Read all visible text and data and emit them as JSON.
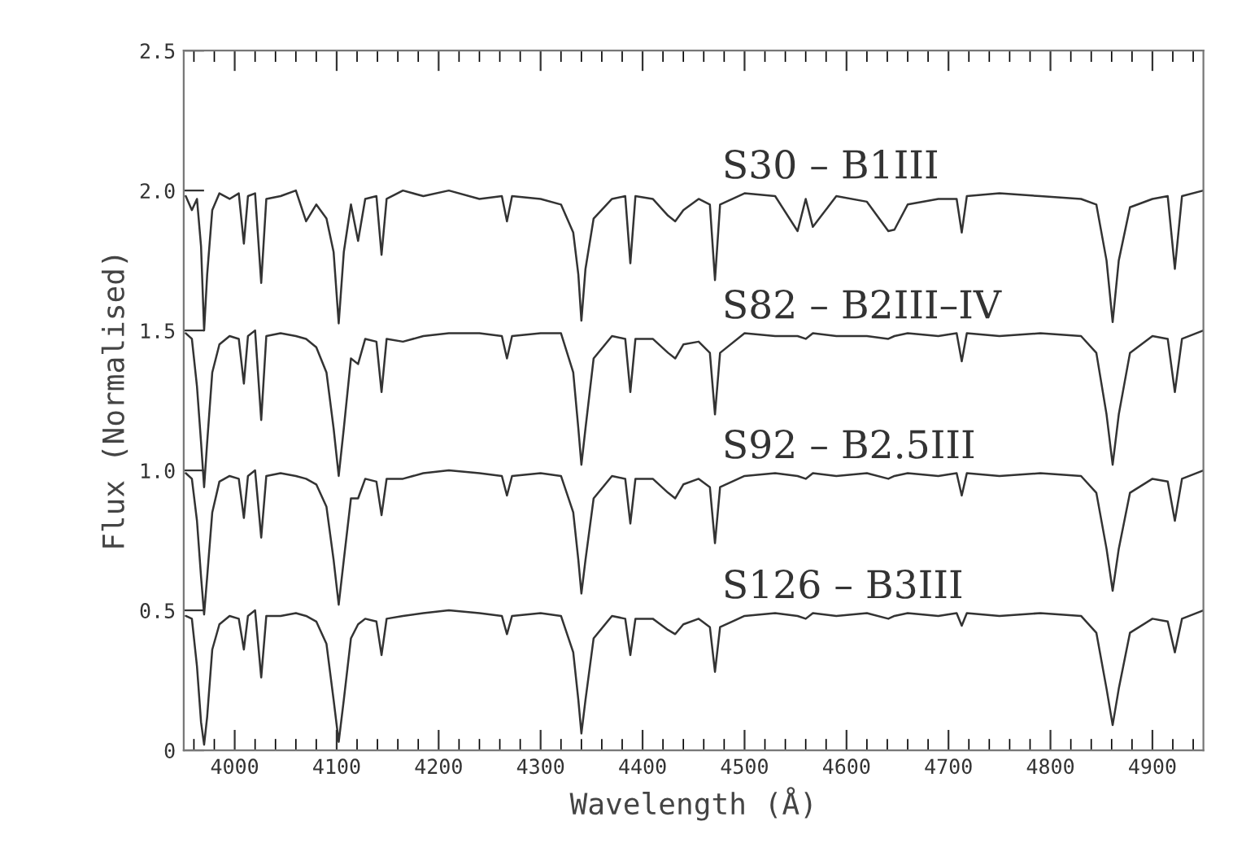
{
  "chart_data": {
    "type": "line",
    "xlabel": "Wavelength (Å)",
    "ylabel": "Flux (Normalised)",
    "xlim": [
      3950,
      4950
    ],
    "ylim": [
      0,
      2.5
    ],
    "xticks": [
      {
        "value": 3960,
        "label": null
      },
      {
        "value": 3980,
        "label": null
      },
      4000,
      {
        "value": 4020,
        "label": null
      },
      {
        "value": 4040,
        "label": null
      },
      {
        "value": 4060,
        "label": null
      },
      {
        "value": 4080,
        "label": null
      },
      4100,
      {
        "value": 4120,
        "label": null
      },
      {
        "value": 4140,
        "label": null
      },
      {
        "value": 4160,
        "label": null
      },
      {
        "value": 4180,
        "label": null
      },
      4200,
      {
        "value": 4220,
        "label": null
      },
      {
        "value": 4240,
        "label": null
      },
      {
        "value": 4260,
        "label": null
      },
      {
        "value": 4280,
        "label": null
      },
      4300,
      {
        "value": 4320,
        "label": null
      },
      {
        "value": 4340,
        "label": null
      },
      {
        "value": 4360,
        "label": null
      },
      {
        "value": 4380,
        "label": null
      },
      4400,
      {
        "value": 4420,
        "label": null
      },
      {
        "value": 4440,
        "label": null
      },
      {
        "value": 4460,
        "label": null
      },
      {
        "value": 4480,
        "label": null
      },
      4500,
      {
        "value": 4520,
        "label": null
      },
      {
        "value": 4540,
        "label": null
      },
      {
        "value": 4560,
        "label": null
      },
      {
        "value": 4580,
        "label": null
      },
      4600,
      {
        "value": 4620,
        "label": null
      },
      {
        "value": 4640,
        "label": null
      },
      {
        "value": 4660,
        "label": null
      },
      {
        "value": 4680,
        "label": null
      },
      4700,
      {
        "value": 4720,
        "label": null
      },
      {
        "value": 4740,
        "label": null
      },
      {
        "value": 4760,
        "label": null
      },
      {
        "value": 4780,
        "label": null
      },
      4800,
      {
        "value": 4820,
        "label": null
      },
      {
        "value": 4840,
        "label": null
      },
      {
        "value": 4860,
        "label": null
      },
      {
        "value": 4880,
        "label": null
      },
      4900,
      {
        "value": 4920,
        "label": null
      },
      {
        "value": 4940,
        "label": null
      }
    ],
    "yticks": [
      0,
      0.5,
      {
        "value": 1,
        "label": "1.0"
      },
      1.5,
      {
        "value": 2,
        "label": "2.0"
      },
      2.5
    ],
    "grid": false,
    "legend": false,
    "marker": "none",
    "line_style": "solid",
    "x": [
      3952,
      3958,
      3963,
      3967,
      3970,
      3973,
      3978,
      3985,
      3995,
      4004,
      4009,
      4013,
      4020,
      4026,
      4031,
      4045,
      4060,
      4070,
      4080,
      4090,
      4097,
      4102,
      4107,
      4114,
      4121,
      4128,
      4139,
      4144,
      4149,
      4165,
      4185,
      4210,
      4240,
      4262,
      4267,
      4272,
      4300,
      4320,
      4332,
      4337,
      4340,
      4344,
      4352,
      4370,
      4383,
      4388,
      4393,
      4410,
      4425,
      4432,
      4440,
      4455,
      4466,
      4471,
      4476,
      4500,
      4530,
      4552,
      4560,
      4567,
      4590,
      4620,
      4641,
      4647,
      4660,
      4690,
      4708,
      4713,
      4718,
      4750,
      4790,
      4830,
      4845,
      4855,
      4861,
      4867,
      4878,
      4900,
      4915,
      4922,
      4929,
      4950
    ],
    "series": [
      {
        "name": "S30 – B1III",
        "color": "#333333",
        "values": [
          1.98,
          1.93,
          1.97,
          1.8,
          1.5,
          1.7,
          1.93,
          1.99,
          1.97,
          1.99,
          1.81,
          1.98,
          1.99,
          1.67,
          1.97,
          1.98,
          2.0,
          1.89,
          1.95,
          1.9,
          1.78,
          1.525,
          1.78,
          1.95,
          1.82,
          1.97,
          1.98,
          1.77,
          1.97,
          2.0,
          1.98,
          2.0,
          1.97,
          1.98,
          1.89,
          1.98,
          1.97,
          1.95,
          1.85,
          1.7,
          1.535,
          1.72,
          1.9,
          1.97,
          1.98,
          1.74,
          1.98,
          1.97,
          1.91,
          1.89,
          1.93,
          1.97,
          1.95,
          1.68,
          1.95,
          1.99,
          1.98,
          1.855,
          1.97,
          1.87,
          1.98,
          1.96,
          1.855,
          1.86,
          1.95,
          1.97,
          1.97,
          1.85,
          1.98,
          1.99,
          1.98,
          1.97,
          1.95,
          1.75,
          1.53,
          1.75,
          1.94,
          1.97,
          1.98,
          1.72,
          1.98,
          2.0
        ]
      },
      {
        "name": "S82 – B2III–IV",
        "color": "#333333",
        "values": [
          1.49,
          1.47,
          1.3,
          1.1,
          0.94,
          1.1,
          1.35,
          1.45,
          1.48,
          1.47,
          1.31,
          1.48,
          1.5,
          1.18,
          1.48,
          1.49,
          1.48,
          1.47,
          1.44,
          1.35,
          1.15,
          0.98,
          1.15,
          1.4,
          1.38,
          1.47,
          1.46,
          1.28,
          1.47,
          1.46,
          1.48,
          1.49,
          1.49,
          1.48,
          1.4,
          1.48,
          1.49,
          1.49,
          1.35,
          1.15,
          1.02,
          1.15,
          1.4,
          1.48,
          1.47,
          1.28,
          1.47,
          1.47,
          1.42,
          1.4,
          1.45,
          1.46,
          1.42,
          1.2,
          1.42,
          1.49,
          1.48,
          1.48,
          1.47,
          1.49,
          1.48,
          1.48,
          1.47,
          1.48,
          1.49,
          1.48,
          1.49,
          1.39,
          1.49,
          1.48,
          1.49,
          1.48,
          1.42,
          1.2,
          1.02,
          1.2,
          1.42,
          1.48,
          1.47,
          1.28,
          1.47,
          1.5
        ]
      },
      {
        "name": "S92 – B2.5III",
        "color": "#333333",
        "values": [
          0.99,
          0.97,
          0.82,
          0.62,
          0.485,
          0.62,
          0.85,
          0.96,
          0.98,
          0.97,
          0.83,
          0.98,
          1.0,
          0.76,
          0.98,
          0.99,
          0.98,
          0.97,
          0.95,
          0.87,
          0.68,
          0.52,
          0.68,
          0.9,
          0.9,
          0.97,
          0.96,
          0.84,
          0.97,
          0.97,
          0.99,
          1.0,
          0.99,
          0.98,
          0.91,
          0.98,
          0.99,
          0.98,
          0.85,
          0.68,
          0.56,
          0.68,
          0.9,
          0.98,
          0.97,
          0.81,
          0.97,
          0.97,
          0.92,
          0.9,
          0.95,
          0.97,
          0.94,
          0.74,
          0.94,
          0.98,
          0.99,
          0.98,
          0.97,
          0.99,
          0.98,
          0.99,
          0.97,
          0.98,
          0.99,
          0.98,
          0.99,
          0.91,
          0.99,
          0.98,
          0.99,
          0.98,
          0.92,
          0.72,
          0.57,
          0.72,
          0.92,
          0.97,
          0.96,
          0.82,
          0.97,
          1.0
        ]
      },
      {
        "name": "S126 – B3III",
        "color": "#333333",
        "values": [
          0.48,
          0.47,
          0.3,
          0.1,
          0.02,
          0.12,
          0.36,
          0.45,
          0.48,
          0.47,
          0.36,
          0.48,
          0.5,
          0.26,
          0.48,
          0.48,
          0.49,
          0.48,
          0.46,
          0.38,
          0.18,
          0.03,
          0.18,
          0.4,
          0.45,
          0.47,
          0.46,
          0.34,
          0.47,
          0.48,
          0.49,
          0.5,
          0.49,
          0.48,
          0.415,
          0.48,
          0.49,
          0.48,
          0.35,
          0.18,
          0.06,
          0.18,
          0.4,
          0.48,
          0.47,
          0.34,
          0.47,
          0.47,
          0.43,
          0.415,
          0.45,
          0.47,
          0.44,
          0.28,
          0.44,
          0.48,
          0.49,
          0.48,
          0.47,
          0.49,
          0.48,
          0.49,
          0.47,
          0.48,
          0.49,
          0.48,
          0.49,
          0.445,
          0.49,
          0.48,
          0.49,
          0.48,
          0.42,
          0.22,
          0.09,
          0.22,
          0.42,
          0.47,
          0.46,
          0.35,
          0.47,
          0.5
        ]
      }
    ]
  }
}
